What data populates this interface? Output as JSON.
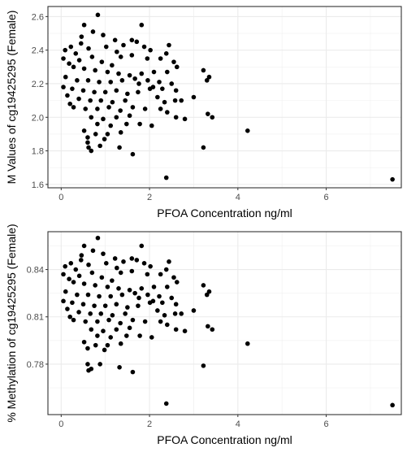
{
  "chart_data": [
    {
      "type": "scatter",
      "xlabel": "PFOA Concentration ng/ml",
      "ylabel": "M Values of cg19425295 (Female)",
      "xlim": [
        -0.3,
        7.7
      ],
      "ylim": [
        1.58,
        2.66
      ],
      "x_ticks": [
        0,
        2,
        4,
        6
      ],
      "y_ticks": [
        1.6,
        1.8,
        2.0,
        2.2,
        2.4,
        2.6
      ],
      "y_tick_labels": [
        "1.6",
        "1.8",
        "2.0",
        "2.2",
        "2.4",
        "2.6"
      ],
      "grid": true,
      "points": [
        [
          0.83,
          2.61
        ],
        [
          0.52,
          2.55
        ],
        [
          1.82,
          2.55
        ],
        [
          1.71,
          2.45
        ],
        [
          2.44,
          2.43
        ],
        [
          0.72,
          2.51
        ],
        [
          0.95,
          2.49
        ],
        [
          1.22,
          2.46
        ],
        [
          1.6,
          2.46
        ],
        [
          0.46,
          2.48
        ],
        [
          0.22,
          2.42
        ],
        [
          0.09,
          2.4
        ],
        [
          0.33,
          2.38
        ],
        [
          0.62,
          2.41
        ],
        [
          1.02,
          2.42
        ],
        [
          1.41,
          2.43
        ],
        [
          1.88,
          2.42
        ],
        [
          2.38,
          2.38
        ],
        [
          0.05,
          2.35
        ],
        [
          0.18,
          2.32
        ],
        [
          0.41,
          2.34
        ],
        [
          0.7,
          2.36
        ],
        [
          0.92,
          2.33
        ],
        [
          1.15,
          2.31
        ],
        [
          1.35,
          2.36
        ],
        [
          1.6,
          2.37
        ],
        [
          1.95,
          2.35
        ],
        [
          2.25,
          2.35
        ],
        [
          2.55,
          2.33
        ],
        [
          0.28,
          2.3
        ],
        [
          0.52,
          2.29
        ],
        [
          0.77,
          2.28
        ],
        [
          1.05,
          2.27
        ],
        [
          1.3,
          2.26
        ],
        [
          1.55,
          2.25
        ],
        [
          1.82,
          2.26
        ],
        [
          2.1,
          2.27
        ],
        [
          2.4,
          2.27
        ],
        [
          2.62,
          2.3
        ],
        [
          0.1,
          2.24
        ],
        [
          0.36,
          2.22
        ],
        [
          0.61,
          2.22
        ],
        [
          0.86,
          2.21
        ],
        [
          1.12,
          2.21
        ],
        [
          1.38,
          2.22
        ],
        [
          1.67,
          2.23
        ],
        [
          1.96,
          2.22
        ],
        [
          2.22,
          2.21
        ],
        [
          2.5,
          2.2
        ],
        [
          0.05,
          2.18
        ],
        [
          0.25,
          2.17
        ],
        [
          0.5,
          2.16
        ],
        [
          0.75,
          2.15
        ],
        [
          1.0,
          2.15
        ],
        [
          1.25,
          2.16
        ],
        [
          1.5,
          2.14
        ],
        [
          1.74,
          2.15
        ],
        [
          2.01,
          2.17
        ],
        [
          2.29,
          2.17
        ],
        [
          2.6,
          2.16
        ],
        [
          0.14,
          2.13
        ],
        [
          0.4,
          2.11
        ],
        [
          0.66,
          2.1
        ],
        [
          0.9,
          2.1
        ],
        [
          1.16,
          2.09
        ],
        [
          1.45,
          2.1
        ],
        [
          2.18,
          2.12
        ],
        [
          2.34,
          2.09
        ],
        [
          2.58,
          2.1
        ],
        [
          2.72,
          2.1
        ],
        [
          0.28,
          2.06
        ],
        [
          0.55,
          2.05
        ],
        [
          0.82,
          2.05
        ],
        [
          1.08,
          2.06
        ],
        [
          1.34,
          2.04
        ],
        [
          1.62,
          2.06
        ],
        [
          1.9,
          2.05
        ],
        [
          2.25,
          2.05
        ],
        [
          2.4,
          2.03
        ],
        [
          0.68,
          2.0
        ],
        [
          0.95,
          1.99
        ],
        [
          1.25,
          2.0
        ],
        [
          1.55,
          2.01
        ],
        [
          2.6,
          2.0
        ],
        [
          2.8,
          1.99
        ],
        [
          3.0,
          2.12
        ],
        [
          0.82,
          1.96
        ],
        [
          1.12,
          1.95
        ],
        [
          1.48,
          1.96
        ],
        [
          1.78,
          1.96
        ],
        [
          2.05,
          1.95
        ],
        [
          0.52,
          1.92
        ],
        [
          0.78,
          1.9
        ],
        [
          1.05,
          1.9
        ],
        [
          1.35,
          1.91
        ],
        [
          0.6,
          1.88
        ],
        [
          0.98,
          1.87
        ],
        [
          0.6,
          1.85
        ],
        [
          0.62,
          1.82
        ],
        [
          0.68,
          1.8
        ],
        [
          0.88,
          1.83
        ],
        [
          1.32,
          1.82
        ],
        [
          1.62,
          1.78
        ],
        [
          3.22,
          2.28
        ],
        [
          3.35,
          2.24
        ],
        [
          3.3,
          2.22
        ],
        [
          3.32,
          2.02
        ],
        [
          3.42,
          2.0
        ],
        [
          3.22,
          1.82
        ],
        [
          2.38,
          1.64
        ],
        [
          4.22,
          1.92
        ],
        [
          7.5,
          1.63
        ],
        [
          0.2,
          2.08
        ],
        [
          1.76,
          2.2
        ],
        [
          2.08,
          2.18
        ],
        [
          0.45,
          2.44
        ],
        [
          1.26,
          2.39
        ],
        [
          2.02,
          2.4
        ]
      ]
    },
    {
      "type": "scatter",
      "xlabel": "PFOA Concentration ng/ml",
      "ylabel": "% Methylation of cg19425295 (Female)",
      "xlim": [
        -0.3,
        7.7
      ],
      "ylim": [
        0.748,
        0.864
      ],
      "x_ticks": [
        0,
        2,
        4,
        6
      ],
      "y_ticks": [
        0.78,
        0.81,
        0.84
      ],
      "y_tick_labels": [
        "0.78",
        "0.81",
        "0.84"
      ],
      "grid": true,
      "points": [
        [
          0.83,
          0.86
        ],
        [
          0.52,
          0.855
        ],
        [
          1.82,
          0.855
        ],
        [
          1.71,
          0.846
        ],
        [
          2.44,
          0.845
        ],
        [
          0.72,
          0.852
        ],
        [
          0.95,
          0.85
        ],
        [
          1.22,
          0.847
        ],
        [
          1.6,
          0.847
        ],
        [
          0.46,
          0.849
        ],
        [
          0.22,
          0.844
        ],
        [
          0.09,
          0.842
        ],
        [
          0.33,
          0.84
        ],
        [
          0.62,
          0.843
        ],
        [
          1.02,
          0.844
        ],
        [
          1.41,
          0.845
        ],
        [
          1.88,
          0.844
        ],
        [
          2.38,
          0.84
        ],
        [
          0.05,
          0.837
        ],
        [
          0.18,
          0.834
        ],
        [
          0.41,
          0.836
        ],
        [
          0.7,
          0.838
        ],
        [
          0.92,
          0.835
        ],
        [
          1.15,
          0.833
        ],
        [
          1.35,
          0.838
        ],
        [
          1.6,
          0.839
        ],
        [
          1.95,
          0.837
        ],
        [
          2.25,
          0.837
        ],
        [
          2.55,
          0.835
        ],
        [
          0.28,
          0.832
        ],
        [
          0.52,
          0.831
        ],
        [
          0.77,
          0.83
        ],
        [
          1.05,
          0.829
        ],
        [
          1.3,
          0.828
        ],
        [
          1.55,
          0.827
        ],
        [
          1.82,
          0.828
        ],
        [
          2.1,
          0.829
        ],
        [
          2.4,
          0.829
        ],
        [
          2.62,
          0.832
        ],
        [
          0.1,
          0.826
        ],
        [
          0.36,
          0.824
        ],
        [
          0.61,
          0.824
        ],
        [
          0.86,
          0.823
        ],
        [
          1.12,
          0.823
        ],
        [
          1.38,
          0.824
        ],
        [
          1.67,
          0.825
        ],
        [
          1.96,
          0.824
        ],
        [
          2.22,
          0.823
        ],
        [
          2.5,
          0.822
        ],
        [
          0.05,
          0.82
        ],
        [
          0.25,
          0.819
        ],
        [
          0.5,
          0.818
        ],
        [
          0.75,
          0.817
        ],
        [
          1.0,
          0.817
        ],
        [
          1.25,
          0.818
        ],
        [
          1.5,
          0.816
        ],
        [
          1.74,
          0.817
        ],
        [
          2.01,
          0.819
        ],
        [
          2.29,
          0.819
        ],
        [
          2.6,
          0.818
        ],
        [
          0.14,
          0.815
        ],
        [
          0.4,
          0.813
        ],
        [
          0.66,
          0.812
        ],
        [
          0.9,
          0.812
        ],
        [
          1.16,
          0.811
        ],
        [
          1.45,
          0.812
        ],
        [
          2.18,
          0.814
        ],
        [
          2.34,
          0.811
        ],
        [
          2.58,
          0.812
        ],
        [
          2.72,
          0.812
        ],
        [
          0.28,
          0.808
        ],
        [
          0.55,
          0.807
        ],
        [
          0.82,
          0.807
        ],
        [
          1.08,
          0.808
        ],
        [
          1.34,
          0.806
        ],
        [
          1.62,
          0.808
        ],
        [
          1.9,
          0.807
        ],
        [
          2.25,
          0.807
        ],
        [
          2.4,
          0.805
        ],
        [
          0.68,
          0.802
        ],
        [
          0.95,
          0.801
        ],
        [
          1.25,
          0.802
        ],
        [
          1.55,
          0.803
        ],
        [
          2.6,
          0.802
        ],
        [
          2.8,
          0.801
        ],
        [
          3.0,
          0.814
        ],
        [
          0.82,
          0.798
        ],
        [
          1.12,
          0.797
        ],
        [
          1.48,
          0.798
        ],
        [
          1.78,
          0.798
        ],
        [
          2.05,
          0.797
        ],
        [
          0.52,
          0.794
        ],
        [
          0.78,
          0.792
        ],
        [
          1.05,
          0.792
        ],
        [
          1.35,
          0.793
        ],
        [
          0.6,
          0.79
        ],
        [
          0.98,
          0.789
        ],
        [
          0.6,
          0.78
        ],
        [
          0.62,
          0.776
        ],
        [
          0.68,
          0.777
        ],
        [
          0.88,
          0.78
        ],
        [
          1.32,
          0.778
        ],
        [
          1.62,
          0.775
        ],
        [
          3.22,
          0.83
        ],
        [
          3.35,
          0.826
        ],
        [
          3.3,
          0.824
        ],
        [
          3.32,
          0.804
        ],
        [
          3.42,
          0.802
        ],
        [
          3.22,
          0.779
        ],
        [
          2.38,
          0.755
        ],
        [
          4.22,
          0.793
        ],
        [
          7.5,
          0.754
        ],
        [
          0.2,
          0.81
        ],
        [
          1.76,
          0.822
        ],
        [
          2.08,
          0.82
        ],
        [
          0.45,
          0.846
        ],
        [
          1.26,
          0.841
        ],
        [
          2.02,
          0.842
        ]
      ]
    }
  ]
}
